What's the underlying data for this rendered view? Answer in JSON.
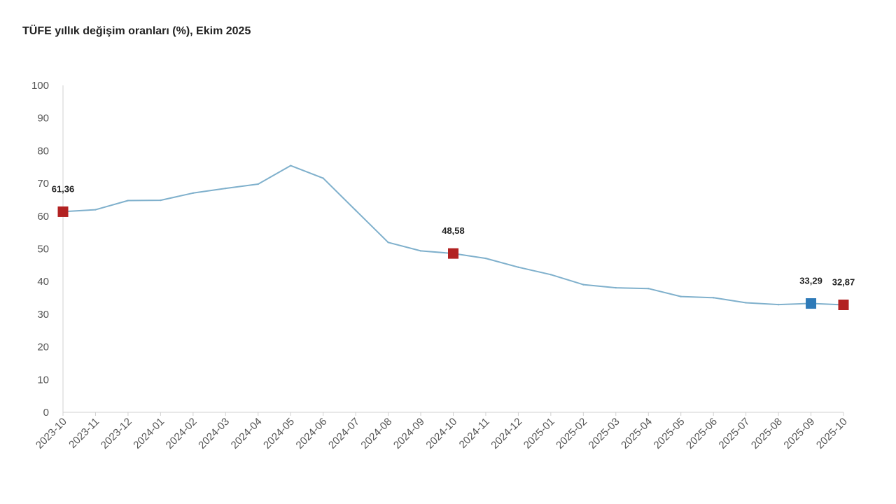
{
  "chart_data": {
    "type": "line",
    "title": "TÜFE yıllık değişim oranları (%), Ekim 2025",
    "xlabel": "",
    "ylabel": "",
    "ylim": [
      0,
      100
    ],
    "yticks": [
      0,
      10,
      20,
      30,
      40,
      50,
      60,
      70,
      80,
      90,
      100
    ],
    "grid": false,
    "categories": [
      "2023-10",
      "2023-11",
      "2023-12",
      "2024-01",
      "2024-02",
      "2024-03",
      "2024-04",
      "2024-05",
      "2024-06",
      "2024-07",
      "2024-08",
      "2024-09",
      "2024-10",
      "2024-11",
      "2024-12",
      "2025-01",
      "2025-02",
      "2025-03",
      "2025-04",
      "2025-05",
      "2025-06",
      "2025-07",
      "2025-08",
      "2025-09",
      "2025-10"
    ],
    "series": [
      {
        "color": "#7fb0cc",
        "values": [
          61.36,
          61.98,
          64.77,
          64.86,
          67.07,
          68.5,
          69.8,
          75.45,
          71.6,
          61.78,
          51.97,
          49.38,
          48.58,
          47.09,
          44.38,
          42.12,
          39.05,
          38.1,
          37.86,
          35.41,
          35.05,
          33.52,
          32.95,
          33.29,
          32.87
        ]
      }
    ],
    "markers": [
      {
        "index": 0,
        "label": "61,36",
        "color": "#b22222"
      },
      {
        "index": 12,
        "label": "48,58",
        "color": "#b22222"
      },
      {
        "index": 23,
        "label": "33,29",
        "color": "#2e7ab8"
      },
      {
        "index": 24,
        "label": "32,87",
        "color": "#b22222"
      }
    ],
    "colors": {
      "axis": "#d0d0d0",
      "text": "#555555"
    }
  }
}
